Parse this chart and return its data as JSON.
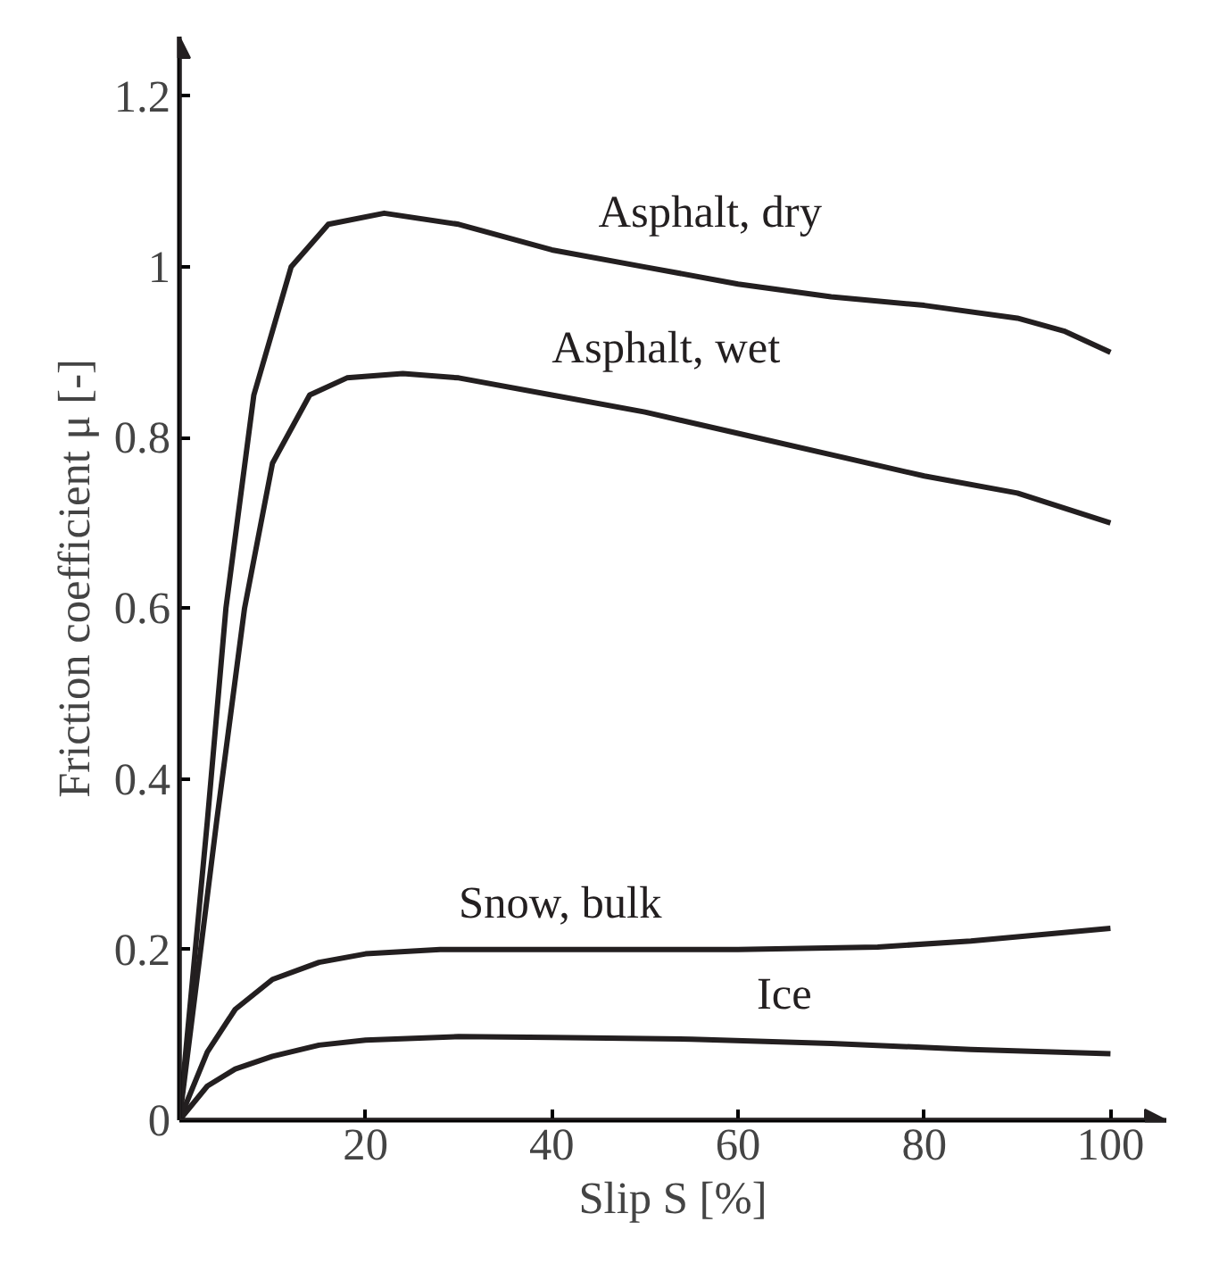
{
  "chart_data": {
    "type": "line",
    "xlabel": "Slip S [%]",
    "ylabel": "Friction coefficient μ [-]",
    "xlim": [
      0,
      106
    ],
    "ylim": [
      0,
      1.27
    ],
    "xticks": [
      20,
      40,
      60,
      80,
      100
    ],
    "yticks": [
      0,
      0.2,
      0.4,
      0.6,
      0.8,
      {
        "value": 1,
        "label": "1"
      },
      1.2
    ],
    "grid": false,
    "marker": "none",
    "line_style": "solid",
    "series": [
      {
        "name": "Asphalt, dry",
        "color": "#231f20",
        "x": [
          0,
          3,
          5,
          8,
          12,
          16,
          22,
          30,
          40,
          50,
          60,
          70,
          80,
          90,
          95,
          100
        ],
        "values": [
          0,
          0.35,
          0.6,
          0.85,
          1.0,
          1.05,
          1.063,
          1.05,
          1.02,
          1.0,
          0.98,
          0.965,
          0.955,
          0.94,
          0.925,
          0.9
        ]
      },
      {
        "name": "Asphalt, wet",
        "color": "#231f20",
        "x": [
          0,
          4,
          7,
          10,
          14,
          18,
          24,
          30,
          40,
          50,
          60,
          70,
          80,
          90,
          100
        ],
        "values": [
          0,
          0.35,
          0.6,
          0.77,
          0.85,
          0.87,
          0.875,
          0.87,
          0.85,
          0.83,
          0.805,
          0.78,
          0.755,
          0.735,
          0.7
        ]
      },
      {
        "name": "Snow, bulk",
        "color": "#231f20",
        "x": [
          0,
          3,
          6,
          10,
          15,
          20,
          28,
          40,
          60,
          75,
          85,
          100
        ],
        "values": [
          0,
          0.08,
          0.13,
          0.165,
          0.185,
          0.195,
          0.2,
          0.2,
          0.2,
          0.203,
          0.21,
          0.225
        ]
      },
      {
        "name": "Ice",
        "color": "#231f20",
        "x": [
          0,
          3,
          6,
          10,
          15,
          20,
          30,
          40,
          55,
          70,
          85,
          100
        ],
        "values": [
          0,
          0.04,
          0.06,
          0.075,
          0.088,
          0.094,
          0.098,
          0.097,
          0.095,
          0.09,
          0.083,
          0.078
        ]
      }
    ]
  }
}
